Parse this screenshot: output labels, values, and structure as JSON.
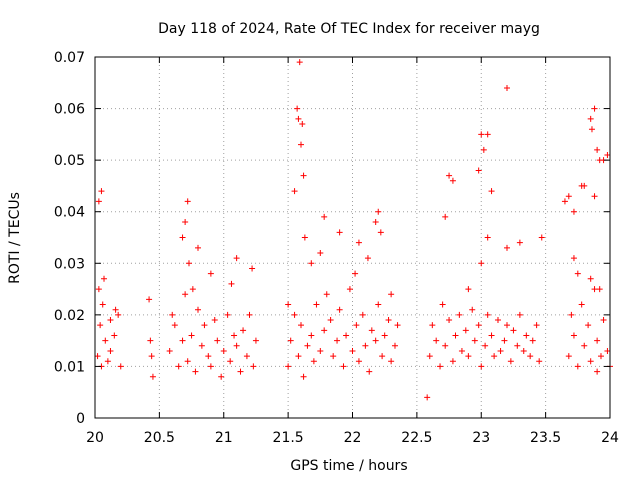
{
  "chart_data": {
    "type": "scatter",
    "title": "Day 118 of 2024, Rate Of TEC Index for receiver mayg",
    "xlabel": "GPS time / hours",
    "ylabel": "ROTI / TECUs",
    "xlim": [
      20,
      24
    ],
    "ylim": [
      0,
      0.07
    ],
    "x_ticks": [
      20,
      20.5,
      21,
      21.5,
      22,
      22.5,
      23,
      23.5,
      24
    ],
    "x_tick_labels": [
      "20",
      "20.5",
      "21",
      "21.5",
      "22",
      "22.5",
      "23",
      "23.5",
      "24"
    ],
    "y_ticks": [
      0,
      0.01,
      0.02,
      0.03,
      0.04,
      0.05,
      0.06,
      0.07
    ],
    "y_tick_labels": [
      "0",
      "0.01",
      "0.02",
      "0.03",
      "0.04",
      "0.05",
      "0.06",
      "0.07"
    ],
    "grid": true,
    "marker": "+",
    "series": [
      {
        "name": "ROTI",
        "color": "#ff0000",
        "x": [
          20.02,
          20.03,
          20.04,
          20.05,
          20.06,
          20.08,
          20.1,
          20.12,
          20.15,
          20.18,
          20.2,
          20.03,
          20.05,
          20.07,
          20.12,
          20.16,
          20.42,
          20.43,
          20.45,
          20.44,
          20.58,
          20.6,
          20.62,
          20.65,
          20.68,
          20.7,
          20.72,
          20.75,
          20.78,
          20.8,
          20.83,
          20.85,
          20.88,
          20.9,
          20.93,
          20.95,
          20.98,
          21.0,
          21.03,
          21.05,
          21.08,
          21.1,
          21.13,
          21.15,
          21.18,
          21.2,
          21.23,
          21.25,
          20.68,
          20.7,
          20.73,
          20.76,
          20.72,
          20.8,
          20.9,
          21.06,
          21.1,
          21.22,
          21.5,
          21.52,
          21.55,
          21.58,
          21.6,
          21.62,
          21.65,
          21.68,
          21.7,
          21.72,
          21.75,
          21.78,
          21.8,
          21.83,
          21.85,
          21.88,
          21.9,
          21.93,
          21.95,
          21.98,
          22.0,
          22.03,
          22.05,
          22.08,
          22.1,
          22.13,
          22.15,
          22.18,
          22.2,
          22.23,
          22.25,
          22.28,
          22.3,
          22.33,
          22.35,
          21.57,
          21.58,
          21.6,
          21.61,
          21.59,
          21.62,
          21.55,
          21.5,
          21.63,
          21.68,
          21.75,
          21.78,
          21.9,
          22.02,
          22.18,
          22.2,
          22.22,
          22.05,
          22.12,
          22.3,
          22.6,
          22.62,
          22.65,
          22.68,
          22.7,
          22.72,
          22.75,
          22.78,
          22.8,
          22.83,
          22.85,
          22.88,
          22.9,
          22.93,
          22.95,
          22.98,
          23.0,
          23.03,
          23.05,
          23.08,
          23.1,
          23.13,
          23.15,
          23.18,
          23.2,
          23.23,
          23.25,
          23.28,
          23.3,
          23.33,
          23.35,
          23.38,
          23.4,
          23.43,
          23.45,
          22.75,
          22.78,
          22.98,
          23.0,
          23.02,
          23.05,
          23.08,
          23.2,
          23.05,
          22.72,
          22.9,
          23.0,
          23.2,
          23.3,
          23.47,
          22.58,
          23.68,
          23.7,
          23.72,
          23.75,
          23.78,
          23.8,
          23.83,
          23.85,
          23.88,
          23.9,
          23.93,
          23.95,
          23.98,
          24.0,
          23.85,
          23.86,
          23.88,
          23.9,
          23.92,
          23.95,
          23.98,
          23.65,
          23.68,
          23.72,
          23.78,
          23.8,
          23.88,
          23.75,
          23.85,
          23.92,
          23.72,
          23.9
        ],
        "y": [
          0.012,
          0.025,
          0.018,
          0.01,
          0.022,
          0.015,
          0.011,
          0.013,
          0.016,
          0.02,
          0.01,
          0.042,
          0.044,
          0.027,
          0.019,
          0.021,
          0.023,
          0.015,
          0.008,
          0.012,
          0.013,
          0.02,
          0.018,
          0.01,
          0.015,
          0.024,
          0.011,
          0.016,
          0.009,
          0.021,
          0.014,
          0.018,
          0.012,
          0.01,
          0.019,
          0.015,
          0.008,
          0.013,
          0.02,
          0.011,
          0.016,
          0.014,
          0.009,
          0.017,
          0.012,
          0.02,
          0.01,
          0.015,
          0.035,
          0.038,
          0.03,
          0.025,
          0.042,
          0.033,
          0.028,
          0.026,
          0.031,
          0.029,
          0.01,
          0.015,
          0.02,
          0.012,
          0.018,
          0.008,
          0.014,
          0.016,
          0.011,
          0.022,
          0.013,
          0.017,
          0.024,
          0.019,
          0.012,
          0.015,
          0.021,
          0.01,
          0.016,
          0.025,
          0.013,
          0.018,
          0.011,
          0.02,
          0.014,
          0.009,
          0.017,
          0.015,
          0.022,
          0.012,
          0.016,
          0.019,
          0.011,
          0.014,
          0.018,
          0.06,
          0.058,
          0.053,
          0.057,
          0.069,
          0.047,
          0.044,
          0.022,
          0.035,
          0.03,
          0.032,
          0.039,
          0.036,
          0.028,
          0.038,
          0.04,
          0.036,
          0.034,
          0.031,
          0.024,
          0.012,
          0.018,
          0.015,
          0.01,
          0.022,
          0.014,
          0.019,
          0.011,
          0.016,
          0.02,
          0.013,
          0.017,
          0.012,
          0.021,
          0.015,
          0.018,
          0.01,
          0.014,
          0.02,
          0.016,
          0.012,
          0.019,
          0.013,
          0.015,
          0.018,
          0.011,
          0.017,
          0.014,
          0.02,
          0.013,
          0.016,
          0.012,
          0.015,
          0.018,
          0.011,
          0.047,
          0.046,
          0.048,
          0.055,
          0.052,
          0.055,
          0.044,
          0.064,
          0.035,
          0.039,
          0.025,
          0.03,
          0.033,
          0.034,
          0.035,
          0.004,
          0.012,
          0.02,
          0.016,
          0.01,
          0.022,
          0.014,
          0.018,
          0.011,
          0.025,
          0.015,
          0.012,
          0.019,
          0.013,
          0.01,
          0.058,
          0.056,
          0.06,
          0.052,
          0.05,
          0.05,
          0.051,
          0.042,
          0.043,
          0.04,
          0.045,
          0.045,
          0.043,
          0.028,
          0.027,
          0.025,
          0.031,
          0.009
        ]
      }
    ]
  }
}
